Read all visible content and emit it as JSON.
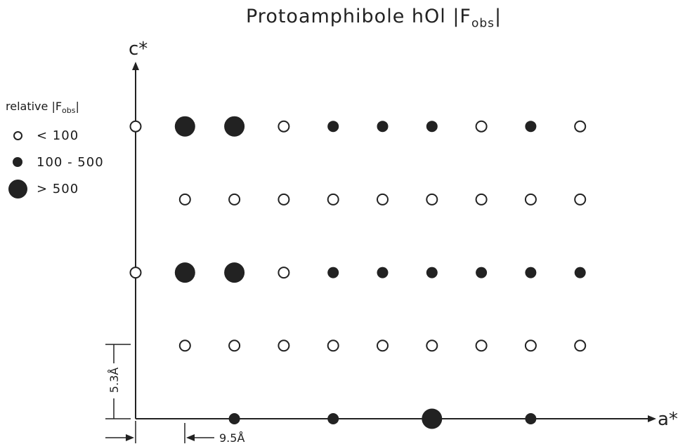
{
  "title": {
    "prefix": "Protoamphibole hOl |F",
    "sub": "obs",
    "suffix": "|"
  },
  "legend": {
    "title_prefix": "relative |F",
    "title_sub": "obs",
    "title_suffix": "|",
    "items": [
      {
        "symbol": "open",
        "label": "< 100"
      },
      {
        "symbol": "filled",
        "label": "100 - 500"
      },
      {
        "symbol": "large",
        "label": "> 500"
      }
    ]
  },
  "axes": {
    "c_label": "c*",
    "a_label": "a*",
    "c_spacing_label": "5.3Å",
    "a_spacing_label": "9.5Å"
  },
  "reflections": {
    "h_values": [
      0,
      1,
      2,
      3,
      4,
      5,
      6,
      7,
      8,
      9
    ],
    "rows": [
      {
        "l": 4,
        "h_start": 0,
        "classes": [
          "open",
          "large",
          "large",
          "open",
          "filled",
          "filled",
          "filled",
          "open",
          "filled",
          "open"
        ]
      },
      {
        "l": 3,
        "h_start": 1,
        "classes": [
          "open",
          "open",
          "open",
          "open",
          "open",
          "open",
          "open",
          "open",
          "open"
        ]
      },
      {
        "l": 2,
        "h_start": 0,
        "classes": [
          "open",
          "large",
          "large",
          "open",
          "filled",
          "filled",
          "filled",
          "filled",
          "filled",
          "filled"
        ]
      },
      {
        "l": 1,
        "h_start": 1,
        "classes": [
          "open",
          "open",
          "open",
          "open",
          "open",
          "open",
          "open",
          "open",
          "open"
        ]
      },
      {
        "l": 0,
        "h_start": 2,
        "classes": [
          "filled",
          null,
          "filled",
          null,
          "large",
          null,
          "filled"
        ]
      }
    ]
  },
  "colors": {
    "ink": "#222222",
    "background": "#ffffff"
  }
}
